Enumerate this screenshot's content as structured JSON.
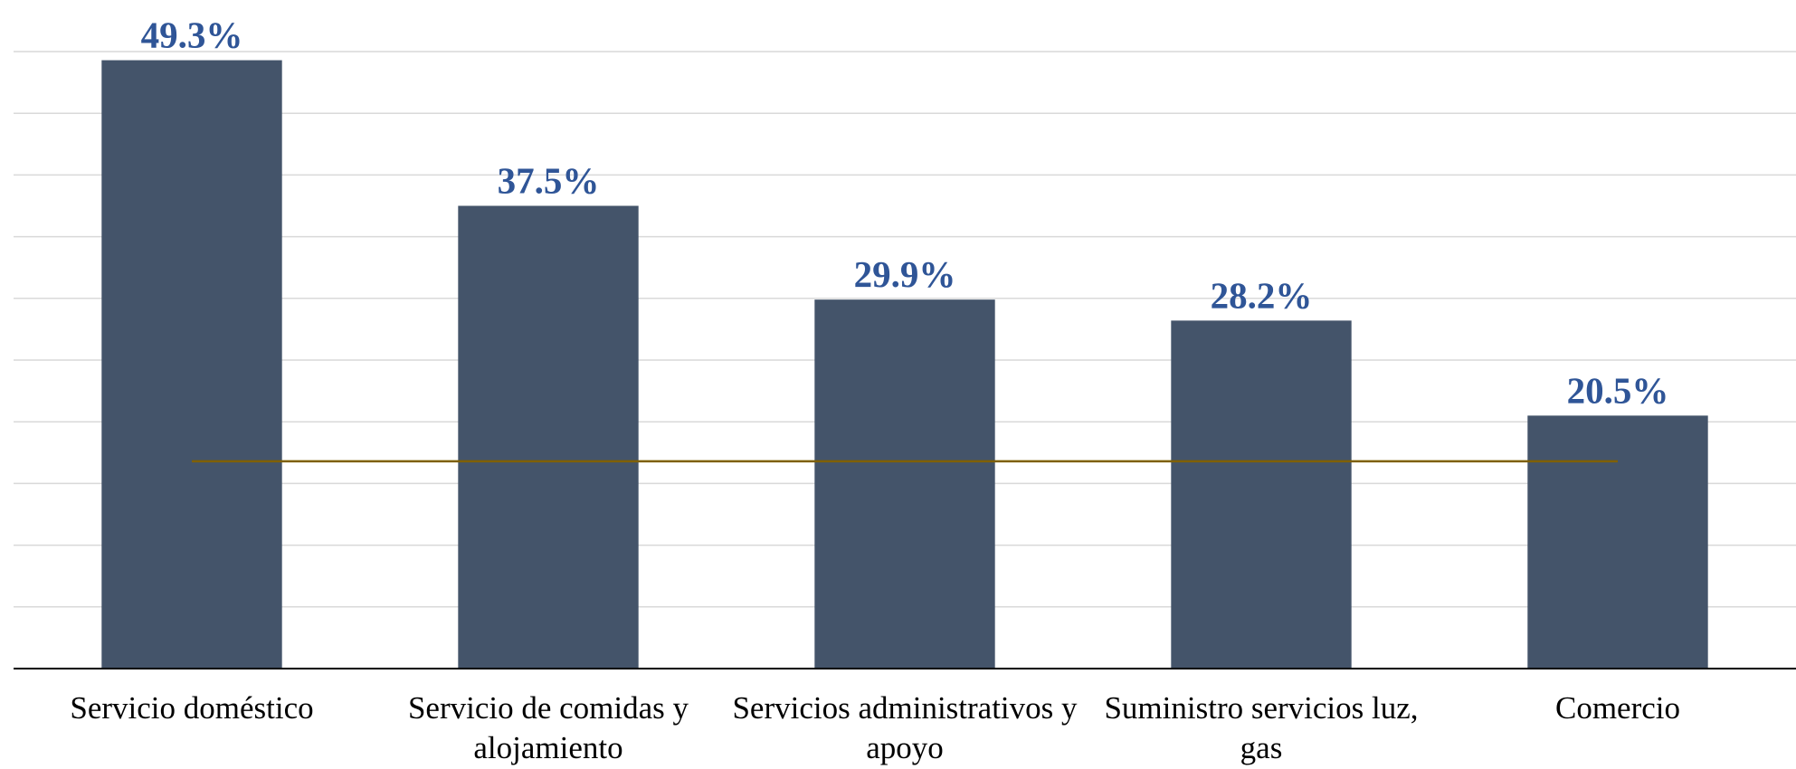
{
  "chart_data": {
    "type": "bar",
    "categories": [
      "Servicio doméstico",
      "Servicio de comidas y alojamiento",
      "Servicios administrativos y apoyo",
      "Suministro servicios luz, gas",
      "Comercio"
    ],
    "values": [
      49.3,
      37.5,
      29.9,
      28.2,
      20.5
    ],
    "value_labels": [
      "49.3%",
      "37.5%",
      "29.9%",
      "28.2%",
      "20.5%"
    ],
    "color": "#44546a",
    "ylim": [
      0,
      50
    ],
    "yticks": [
      0,
      5,
      10,
      15,
      20,
      25,
      30,
      35,
      40,
      45,
      50
    ],
    "grid": true,
    "reference_line": {
      "value": 16.8,
      "color": "#7f6000"
    }
  }
}
